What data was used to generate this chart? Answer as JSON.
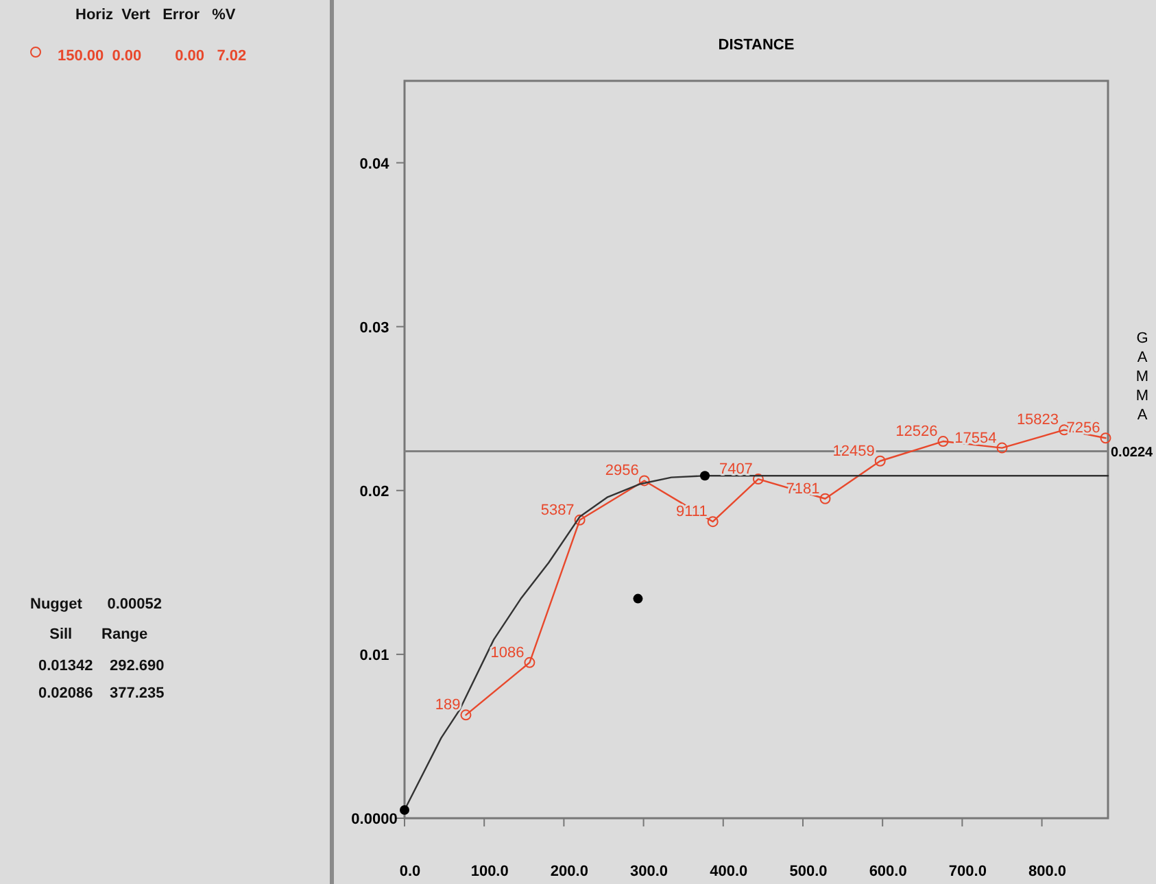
{
  "chart_data": {
    "type": "line",
    "xlabel": "DISTANCE",
    "ylabel": "GAMMA",
    "xlim": [
      0,
      883
    ],
    "ylim": [
      0,
      0.045
    ],
    "xticks": [
      {
        "value": 0,
        "label": "0.0"
      },
      {
        "value": 100,
        "label": "100.0"
      },
      {
        "value": 200,
        "label": "200.0"
      },
      {
        "value": 300,
        "label": "300.0"
      },
      {
        "value": 400,
        "label": "400.0"
      },
      {
        "value": 500,
        "label": "500.0"
      },
      {
        "value": 600,
        "label": "600.0"
      },
      {
        "value": 700,
        "label": "700.0"
      },
      {
        "value": 800,
        "label": "800.0"
      }
    ],
    "yticks": [
      {
        "value": 0,
        "label": "0.0000"
      },
      0.01,
      0.02,
      0.03,
      0.04
    ],
    "series": [
      {
        "type": "line",
        "color": "#e8482c",
        "marker": "circle",
        "x": [
          77,
          157,
          220,
          301,
          387,
          444,
          528,
          597,
          676,
          750,
          828,
          880
        ],
        "values": [
          0.0063,
          0.0095,
          0.0182,
          0.0206,
          0.0181,
          0.0207,
          0.0195,
          0.0218,
          0.023,
          0.0226,
          0.0237,
          0.0232
        ]
      },
      {
        "type": "line",
        "color": "#333333",
        "marker": "none",
        "x": [
          0,
          46,
          69,
          112,
          146,
          181,
          220,
          255,
          296,
          335,
          377,
          883
        ],
        "values": [
          0.0005,
          0.0049,
          0.0066,
          0.0109,
          0.0134,
          0.0156,
          0.0184,
          0.0196,
          0.0204,
          0.0208,
          0.0209,
          0.0209
        ]
      },
      {
        "type": "scatter",
        "color": "#000000",
        "marker": "circle",
        "x": [
          0,
          293,
          377
        ],
        "values": [
          0.0005,
          0.0134,
          0.0209
        ]
      }
    ],
    "ref_lines": [
      {
        "axis": "y",
        "value": 0.0224,
        "label": "0.0224",
        "color": "#808080"
      }
    ],
    "annotations": [
      "Horiz  Vert   Error   %V",
      "150.00  0.00        0.00   7.02",
      "Nugget      0.00052",
      "  Sill       Range",
      "0.01342    292.690",
      "0.02086    377.235",
      {
        "text": "189",
        "x": 77,
        "y": 0.0063
      },
      {
        "text": "1086",
        "x": 157,
        "y": 0.0095
      },
      {
        "text": "5387",
        "x": 220,
        "y": 0.0182
      },
      {
        "text": "2956",
        "x": 301,
        "y": 0.0206
      },
      {
        "text": "9111",
        "x": 387,
        "y": 0.0181
      },
      {
        "text": "7407",
        "x": 444,
        "y": 0.0207
      },
      {
        "text": "7181",
        "x": 528,
        "y": 0.0195
      },
      {
        "text": "12459",
        "x": 597,
        "y": 0.0218
      },
      {
        "text": "12526",
        "x": 676,
        "y": 0.023
      },
      {
        "text": "17554",
        "x": 750,
        "y": 0.0226
      },
      {
        "text": "15823",
        "x": 828,
        "y": 0.0237
      },
      {
        "text": "7256",
        "x": 880,
        "y": 0.0232
      }
    ],
    "grid": false
  }
}
